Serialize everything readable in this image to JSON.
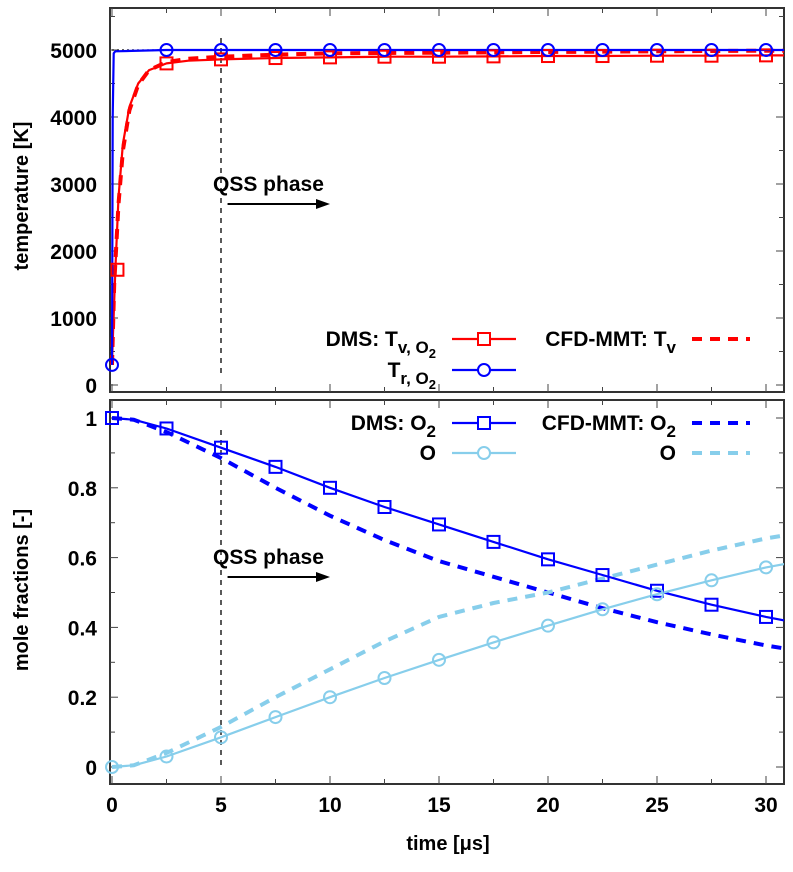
{
  "chart_data": [
    {
      "type": "line",
      "panel": "top",
      "title": "",
      "xlabel": "",
      "ylabel": "temperature [K]",
      "xlim": [
        0,
        31
      ],
      "ylim": [
        0,
        5500
      ],
      "yticks": [
        "0",
        "1000",
        "2000",
        "3000",
        "4000",
        "5000"
      ],
      "grid": false,
      "annotation": {
        "text": "QSS phase",
        "x": 5,
        "arrow_from": 5.3,
        "arrow_to": 10
      },
      "vline_x": 5,
      "hline_dotted_y": 5000,
      "legend": [
        {
          "label": "DMS: T",
          "sub": "v, O2",
          "color": "#ff0000",
          "style": "solid",
          "marker": "square"
        },
        {
          "label": "T",
          "sub": "r, O2",
          "color": "#0000ff",
          "style": "solid",
          "marker": "circle"
        },
        {
          "label": "CFD-MMT: T",
          "sub": "v",
          "color": "#ff0000",
          "style": "dashed",
          "marker": "none"
        }
      ],
      "series": [
        {
          "name": "DMS: Tv,O2",
          "color": "#ff0000",
          "style": "solid",
          "marker": "square",
          "x": [
            0,
            0.15,
            0.3,
            0.5,
            0.8,
            1.2,
            1.7,
            2.5,
            3.5,
            5,
            7.5,
            10,
            12.5,
            15,
            17.5,
            20,
            22.5,
            25,
            27.5,
            30,
            31
          ],
          "y": [
            350,
            1700,
            2800,
            3600,
            4150,
            4500,
            4700,
            4800,
            4840,
            4860,
            4880,
            4890,
            4900,
            4900,
            4905,
            4910,
            4910,
            4915,
            4915,
            4920,
            4920
          ]
        },
        {
          "name": "DMS: Tr,O2",
          "color": "#0000ff",
          "style": "solid",
          "marker": "circle",
          "x": [
            0,
            0.03,
            0.08,
            0.15,
            2.5,
            5,
            7.5,
            10,
            12.5,
            15,
            17.5,
            20,
            22.5,
            25,
            27.5,
            30,
            31
          ],
          "y": [
            300,
            4000,
            4950,
            4980,
            5000,
            5000,
            5000,
            5000,
            5000,
            5000,
            5000,
            5000,
            5000,
            5000,
            5000,
            5000,
            5000
          ]
        },
        {
          "name": "CFD-MMT: Tv",
          "color": "#ff0000",
          "style": "dashed",
          "marker": "none",
          "x": [
            0,
            0.1,
            0.3,
            0.5,
            0.8,
            1.2,
            1.7,
            2.5,
            3.5,
            5,
            7.5,
            10,
            15,
            20,
            25,
            30,
            31
          ],
          "y": [
            300,
            1500,
            2700,
            3500,
            4100,
            4480,
            4700,
            4820,
            4870,
            4900,
            4930,
            4950,
            4960,
            4970,
            4980,
            4990,
            4990
          ]
        }
      ],
      "marker_x": [
        0,
        2.5,
        5,
        7.5,
        10,
        12.5,
        15,
        17.5,
        20,
        22.5,
        25,
        27.5,
        30
      ]
    },
    {
      "type": "line",
      "panel": "bottom",
      "title": "",
      "xlabel": "time [μs]",
      "ylabel": "mole fractions [-]",
      "xlim": [
        0,
        31
      ],
      "ylim": [
        -0.05,
        1.05
      ],
      "xticks": [
        "0",
        "5",
        "10",
        "15",
        "20",
        "25",
        "30"
      ],
      "yticks": [
        "0",
        "0.2",
        "0.4",
        "0.6",
        "0.8",
        "1"
      ],
      "grid": false,
      "annotation": {
        "text": "QSS phase",
        "x": 5,
        "arrow_from": 5.3,
        "arrow_to": 10
      },
      "vline_x": 5,
      "legend": [
        {
          "label": "DMS: O",
          "sub": "2",
          "color": "#0000ff",
          "style": "solid",
          "marker": "square"
        },
        {
          "label": "O",
          "sub": "",
          "color": "#87ceeb",
          "style": "solid",
          "marker": "circle"
        },
        {
          "label": "CFD-MMT: O",
          "sub": "2",
          "color": "#0000ff",
          "style": "dashed",
          "marker": "none"
        },
        {
          "label": "O",
          "sub": "",
          "color": "#87ceeb",
          "style": "dashed",
          "marker": "none"
        }
      ],
      "series": [
        {
          "name": "DMS: O2",
          "color": "#0000ff",
          "style": "solid",
          "marker": "square",
          "x": [
            0,
            1,
            2.5,
            5,
            7.5,
            10,
            12.5,
            15,
            17.5,
            20,
            22.5,
            25,
            27.5,
            30,
            31
          ],
          "y": [
            1.0,
            0.995,
            0.97,
            0.915,
            0.86,
            0.8,
            0.745,
            0.695,
            0.645,
            0.595,
            0.55,
            0.505,
            0.465,
            0.43,
            0.418
          ]
        },
        {
          "name": "DMS: O",
          "color": "#87ceeb",
          "style": "solid",
          "marker": "circle",
          "x": [
            0,
            1,
            2.5,
            5,
            7.5,
            10,
            12.5,
            15,
            17.5,
            20,
            22.5,
            25,
            27.5,
            30,
            31
          ],
          "y": [
            0.0,
            0.005,
            0.03,
            0.085,
            0.143,
            0.2,
            0.255,
            0.307,
            0.357,
            0.405,
            0.452,
            0.495,
            0.535,
            0.572,
            0.583
          ]
        },
        {
          "name": "CFD-MMT: O2",
          "color": "#0000ff",
          "style": "dashed",
          "marker": "none",
          "x": [
            0,
            1,
            2.5,
            5,
            7.5,
            10,
            12.5,
            15,
            17.5,
            20,
            22.5,
            25,
            27.5,
            30,
            31
          ],
          "y": [
            1.0,
            0.995,
            0.96,
            0.885,
            0.8,
            0.72,
            0.65,
            0.59,
            0.545,
            0.5,
            0.455,
            0.415,
            0.38,
            0.348,
            0.338
          ]
        },
        {
          "name": "CFD-MMT: O",
          "color": "#87ceeb",
          "style": "dashed",
          "marker": "none",
          "x": [
            0,
            1,
            2.5,
            5,
            7.5,
            10,
            12.5,
            15,
            17.5,
            20,
            22.5,
            25,
            27.5,
            30,
            31
          ],
          "y": [
            0.0,
            0.005,
            0.04,
            0.115,
            0.2,
            0.28,
            0.36,
            0.43,
            0.47,
            0.5,
            0.54,
            0.58,
            0.62,
            0.655,
            0.665
          ]
        }
      ],
      "marker_x": [
        0,
        2.5,
        5,
        7.5,
        10,
        12.5,
        15,
        17.5,
        20,
        22.5,
        25,
        27.5,
        30
      ]
    }
  ]
}
